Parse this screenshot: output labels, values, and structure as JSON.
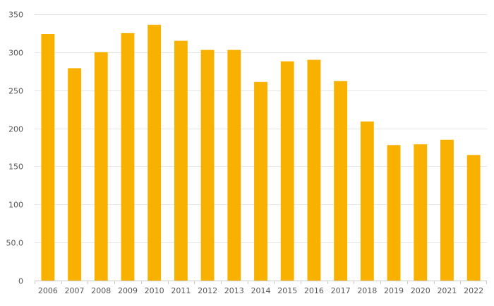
{
  "chart_data": {
    "type": "bar",
    "categories": [
      "2006",
      "2007",
      "2008",
      "2009",
      "2010",
      "2011",
      "2012",
      "2013",
      "2014",
      "2015",
      "2016",
      "2017",
      "2018",
      "2019",
      "2020",
      "2021",
      "2022"
    ],
    "values": [
      324,
      279,
      300,
      325,
      336,
      315,
      303,
      303,
      261,
      288,
      290,
      262,
      209,
      178,
      179,
      185,
      165
    ],
    "ylim": [
      0,
      350
    ],
    "yticks": [
      0,
      50,
      100,
      150,
      200,
      250,
      300,
      350
    ],
    "ytick_labels": [
      "0",
      "50.0",
      "100",
      "150",
      "200",
      "250",
      "300",
      "350"
    ],
    "grid": true,
    "bar_color": "#f9b100",
    "title": "",
    "xlabel": "",
    "ylabel": ""
  }
}
